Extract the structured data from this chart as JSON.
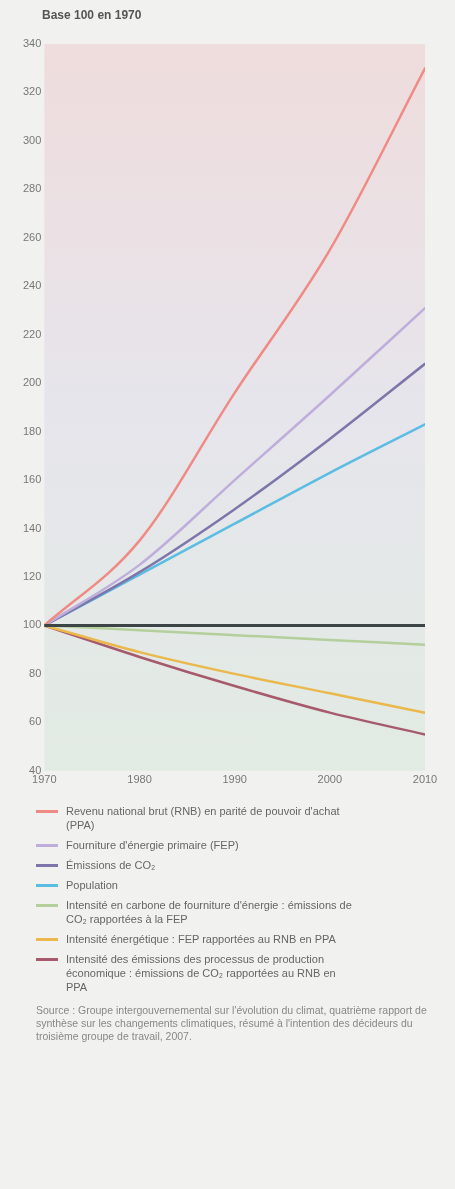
{
  "chart_data": {
    "type": "line",
    "ylabel": "Base 100 en 1970",
    "x": [
      1970,
      1980,
      1990,
      2000,
      2010
    ],
    "xlim": [
      1970,
      2010
    ],
    "xticks": [
      1970,
      1980,
      1990,
      2000,
      2010
    ],
    "ylim": [
      40,
      340
    ],
    "yticks": [
      40,
      60,
      80,
      100,
      120,
      140,
      160,
      180,
      200,
      220,
      240,
      260,
      280,
      300,
      320,
      340
    ],
    "grid": false,
    "legend": "bottom",
    "marker": "none",
    "line_style": "solid",
    "series": [
      {
        "name": "Revenu national brut (RNB) en parité de pouvoir d'achat (PPA)",
        "color": "#f08a84",
        "values": [
          100,
          135,
          196,
          255,
          330
        ]
      },
      {
        "name": "Fourniture d'énergie primaire (FEP)",
        "color": "#bfaedc",
        "values": [
          100,
          125,
          160,
          195,
          231
        ]
      },
      {
        "name": "Émissions de CO₂",
        "color": "#7d76aa",
        "values": [
          100,
          122,
          148,
          177,
          208
        ]
      },
      {
        "name": "Population",
        "color": "#5cbde2",
        "values": [
          100,
          121,
          142,
          163,
          183
        ]
      },
      {
        "name": "Intensité en carbone de fourniture d'énergie : émissions de CO₂ rapportées à la FEP",
        "color": "#b4cf9c",
        "values": [
          100,
          98,
          96,
          94,
          92
        ]
      },
      {
        "name": "Intensité énergétique : FEP rapportées au RNB en PPA",
        "color": "#eab84c",
        "values": [
          100,
          89,
          80,
          72,
          64
        ]
      },
      {
        "name": "Intensité des émissions des processus de production économique : émissions de CO₂ rapportées au RNB en PPA",
        "color": "#a65a6c",
        "values": [
          100,
          87,
          75,
          64,
          55
        ]
      }
    ],
    "ref_lines": [
      {
        "axis": "y",
        "value": 100,
        "color": "#3c4446"
      }
    ],
    "annotations": [
      "Source : Groupe intergouvernemental sur l'évolution du climat, quatrième rapport de synthèse sur les changements climatiques, résumé à l'intention des décideurs du troisième groupe de travail, 2007."
    ]
  }
}
